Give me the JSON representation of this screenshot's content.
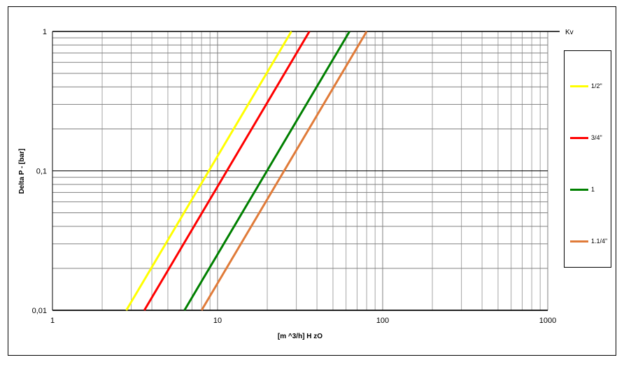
{
  "chart_data": {
    "type": "line",
    "title": "",
    "xlabel": "[m ^3/h] H zO",
    "ylabel": "Delta P - [bar]",
    "legend_title": "Kv",
    "x_scale": "log",
    "y_scale": "log",
    "xlim": [
      1,
      1000
    ],
    "ylim": [
      0.01,
      1
    ],
    "x_ticks": [
      "1",
      "10",
      "100",
      "1000"
    ],
    "y_ticks": [
      "0,01",
      "0,1",
      "1"
    ],
    "grid": true,
    "legend_position": "right",
    "series": [
      {
        "name": "1/2\"",
        "color": "#ffff00",
        "x": [
          2.8,
          28
        ],
        "y": [
          0.01,
          1
        ]
      },
      {
        "name": "3/4\"",
        "color": "#ff0000",
        "x": [
          3.6,
          36
        ],
        "y": [
          0.01,
          1
        ]
      },
      {
        "name": "1",
        "color": "#008000",
        "x": [
          6.3,
          63
        ],
        "y": [
          0.01,
          1
        ]
      },
      {
        "name": "1.1/4\"",
        "color": "#e07b39",
        "x": [
          8.0,
          80
        ],
        "y": [
          0.01,
          1
        ]
      }
    ]
  }
}
